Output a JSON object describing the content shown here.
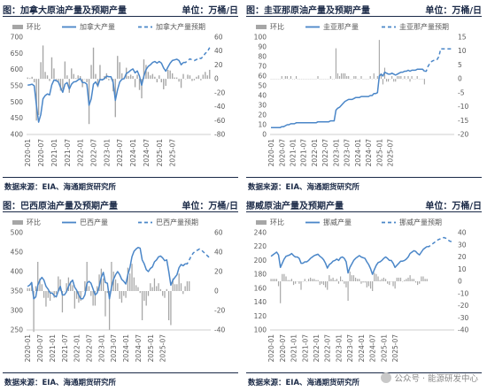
{
  "panels": [
    {
      "title": "图：加拿大原油产量及预期产量",
      "unit": "单位：万桶/日",
      "source": "数据来源：EIA、海通期货研究所"
    },
    {
      "title": "图：圭亚那原油产量及预期产量",
      "unit": "单位：万桶/日",
      "source": "数据来源：EIA、海通期货研究所"
    },
    {
      "title": "图：巴西原油产量及预期产量",
      "unit": "单位：万桶/日",
      "source": "数据来源：EIA、海通期货研究所"
    },
    {
      "title": "挪威原油产量及预期产量",
      "unit": "单位：万桶/日",
      "source": "数据来源：EIA、海通期货研究所"
    }
  ],
  "watermark": "公众号 · 能源研发中心",
  "colors": {
    "bar": "#a6a6a6",
    "line": "#4a86c8",
    "text": "#1b2a47",
    "axis": "#595959"
  },
  "chart_data": [
    {
      "type": "line",
      "legend": [
        "环比",
        "加拿大产量",
        "加拿大产量预期"
      ],
      "x_ticks": [
        "2020-01",
        "2020-07",
        "2021-01",
        "2021-07",
        "2022-01",
        "2022-07",
        "2023-01",
        "2023-07",
        "2024-01",
        "2024-07",
        "2025-01",
        "2025-07"
      ],
      "y_left": {
        "min": 400,
        "max": 700,
        "ticks": [
          400,
          450,
          500,
          550,
          600,
          650,
          700
        ]
      },
      "y_right": {
        "min": -80,
        "max": 60,
        "ticks": [
          -80,
          -60,
          -40,
          -20,
          0,
          20,
          40,
          60
        ]
      },
      "start": "2020-01",
      "actual": [
        552,
        553,
        555,
        550,
        490,
        438,
        462,
        510,
        520,
        525,
        522,
        553,
        568,
        566,
        562,
        545,
        530,
        555,
        560,
        540,
        555,
        562,
        563,
        568,
        572,
        560,
        560,
        555,
        490,
        510,
        555,
        562,
        550,
        570,
        568,
        572,
        580,
        578,
        578,
        560,
        505,
        538,
        562,
        570,
        572,
        588,
        592,
        598,
        602,
        590,
        596,
        580,
        552,
        580,
        600,
        610,
        615,
        622,
        625,
        620,
        625,
        620,
        605,
        595,
        608,
        620,
        628,
        630,
        632,
        628,
        615,
        622
      ],
      "forecast": [
        622,
        628,
        633,
        630,
        628,
        631,
        636,
        634,
        640,
        650,
        655,
        668
      ],
      "mom": [
        2,
        1,
        3,
        -5,
        -60,
        -52,
        24,
        48,
        10,
        5,
        -3,
        31,
        15,
        -2,
        -4,
        -17,
        -15,
        25,
        5,
        -20,
        15,
        7,
        1,
        5,
        4,
        -12,
        0,
        -5,
        -65,
        20,
        45,
        7,
        -12,
        20,
        -2,
        4,
        8,
        -2,
        0,
        -18,
        -55,
        33,
        24,
        8,
        2,
        16,
        4,
        6,
        4,
        -12,
        6,
        -16,
        -28,
        28,
        20,
        10,
        5,
        7,
        3,
        -5,
        5,
        -5,
        -15,
        -10,
        13,
        12,
        8,
        2,
        2,
        -4,
        -13,
        7,
        0,
        6,
        5,
        -3,
        -2,
        3,
        5,
        -2,
        6,
        10,
        5,
        13
      ]
    },
    {
      "type": "line",
      "legend": [
        "环比",
        "圭亚那产量",
        "圭亚那产量预期"
      ],
      "x_ticks": [
        "2020-01",
        "2020-07",
        "2021-01",
        "2021-07",
        "2022-01",
        "2022-07",
        "2023-01",
        "2023-07",
        "2024-01",
        "2024-07",
        "2025-01",
        "2025-07"
      ],
      "y_left": {
        "min": 0,
        "max": 100,
        "ticks": [
          0,
          10,
          20,
          30,
          40,
          50,
          60,
          70,
          80,
          90,
          100
        ]
      },
      "y_right": {
        "min": -20,
        "max": 15,
        "ticks": [
          -20,
          -15,
          -10,
          -5,
          0,
          5,
          10,
          15
        ]
      },
      "start": "2020-01",
      "actual": [
        7,
        7,
        7,
        7,
        7,
        7,
        8,
        8,
        9,
        10,
        10,
        11,
        11,
        11,
        12,
        12,
        12,
        12,
        12,
        12,
        12,
        12,
        12,
        12,
        12,
        12,
        13,
        13,
        13,
        13,
        13,
        13,
        13,
        14,
        14,
        14,
        25,
        27,
        28,
        30,
        32,
        34,
        35,
        36,
        36,
        36,
        37,
        38,
        38,
        38,
        39,
        39,
        39,
        39,
        39,
        40,
        40,
        42,
        42,
        43,
        60,
        62,
        60,
        64,
        63,
        62,
        62,
        63,
        62,
        61,
        62,
        63,
        64,
        64,
        65,
        65,
        66,
        65,
        66,
        66,
        66,
        67,
        67,
        67,
        67,
        65
      ],
      "forecast": [
        65,
        70,
        73,
        75,
        76,
        76,
        77,
        80,
        88,
        88,
        88,
        88,
        88,
        88,
        88,
        88
      ],
      "mom": [
        0,
        0,
        0,
        0,
        0,
        0,
        1,
        0,
        1,
        1,
        0,
        1,
        0,
        0,
        1,
        0,
        0,
        0,
        0,
        0,
        0,
        0,
        0,
        0,
        0,
        0,
        1,
        0,
        0,
        0,
        0,
        0,
        0,
        1,
        0,
        0,
        11,
        2,
        1,
        2,
        2,
        2,
        1,
        1,
        0,
        0,
        1,
        1,
        0,
        0,
        1,
        0,
        0,
        0,
        0,
        1,
        0,
        2,
        0,
        1,
        14,
        2,
        -2,
        4,
        -1,
        -1,
        0,
        1,
        -1,
        -1,
        1,
        1,
        1,
        0,
        1,
        0,
        1,
        -1,
        1,
        0,
        0,
        1,
        0,
        0,
        0,
        -2
      ]
    },
    {
      "type": "line",
      "legend": [
        "环比",
        "巴西产量",
        "巴西产量预期"
      ],
      "x_ticks": [
        "2020-01",
        "2020-07",
        "2021-01",
        "2021-07",
        "2022-01",
        "2022-07",
        "2023-01",
        "2023-07",
        "2024-01",
        "2024-07",
        "2025-01",
        "2025-07"
      ],
      "y_left": {
        "min": 250,
        "max": 500,
        "ticks": [
          250,
          300,
          350,
          400,
          450,
          500
        ]
      },
      "y_right": {
        "min": -40,
        "max": 60,
        "ticks": [
          -40,
          -20,
          0,
          20,
          40,
          60
        ]
      },
      "start": "2020-01",
      "actual": [
        362,
        365,
        372,
        330,
        335,
        365,
        378,
        385,
        378,
        362,
        355,
        345,
        345,
        338,
        335,
        350,
        362,
        340,
        340,
        348,
        362,
        372,
        378,
        360,
        352,
        340,
        330,
        330,
        340,
        370,
        375,
        370,
        355,
        340,
        345,
        362,
        385,
        398,
        372,
        370,
        330,
        360,
        380,
        392,
        400,
        392,
        380,
        375,
        368,
        392,
        410,
        438,
        452,
        458,
        462,
        460,
        430,
        420,
        405,
        400,
        408,
        412,
        425,
        430,
        438,
        440,
        435,
        428,
        430,
        400,
        365,
        378,
        385,
        392,
        410,
        418,
        415,
        420
      ],
      "forecast": [
        420,
        430,
        440,
        448,
        452,
        455,
        458,
        455,
        450,
        445,
        440,
        435
      ],
      "mom": [
        3,
        3,
        7,
        -42,
        5,
        30,
        13,
        7,
        -7,
        -16,
        -7,
        -10,
        0,
        -7,
        -3,
        15,
        12,
        -22,
        0,
        8,
        14,
        10,
        6,
        -18,
        -8,
        -12,
        -10,
        0,
        10,
        30,
        5,
        -5,
        -15,
        -15,
        5,
        17,
        23,
        13,
        -26,
        -2,
        -40,
        30,
        20,
        12,
        8,
        -8,
        -12,
        -5,
        -7,
        24,
        18,
        28,
        14,
        6,
        4,
        -2,
        -30,
        -10,
        -15,
        -5,
        8,
        4,
        13,
        5,
        8,
        2,
        -5,
        -7,
        2,
        -30,
        -35,
        13,
        7,
        7,
        18,
        8,
        -3,
        5,
        10,
        10
      ]
    },
    {
      "type": "line",
      "legend": [
        "环比",
        "挪威产量",
        "挪威产量预期"
      ],
      "x_ticks": [
        "2020-01",
        "2020-07",
        "2021-01",
        "2021-07",
        "2022-01",
        "2022-07",
        "2023-01",
        "2023-07",
        "2024-01",
        "2024-07",
        "2025-01",
        "2025-07"
      ],
      "y_left": {
        "min": 100,
        "max": 240,
        "ticks": [
          100,
          120,
          140,
          160,
          180,
          200,
          220,
          240
        ]
      },
      "y_right": {
        "min": -40,
        "max": 40,
        "ticks": [
          -40,
          -30,
          -20,
          -10,
          0,
          10,
          20,
          30,
          40
        ]
      },
      "start": "2020-01",
      "actual": [
        206,
        208,
        210,
        212,
        208,
        190,
        196,
        202,
        206,
        207,
        208,
        210,
        207,
        205,
        205,
        203,
        196,
        196,
        198,
        198,
        200,
        203,
        205,
        207,
        208,
        209,
        206,
        204,
        201,
        196,
        189,
        194,
        196,
        199,
        200,
        202,
        200,
        204,
        205,
        203,
        198,
        182,
        190,
        195,
        200,
        203,
        205,
        207,
        205,
        204,
        203,
        198,
        194,
        188,
        180,
        187,
        193,
        197,
        198,
        200,
        203,
        205,
        203,
        200,
        200,
        196,
        190,
        193,
        196,
        199,
        199,
        200,
        202,
        205,
        210,
        212,
        214,
        213,
        210,
        208,
        212,
        216,
        218,
        220
      ],
      "forecast": [
        220,
        222,
        224,
        226,
        228,
        230,
        231,
        232,
        233,
        232,
        230,
        228,
        227,
        226
      ],
      "mom": [
        2,
        2,
        2,
        2,
        -4,
        -18,
        6,
        6,
        4,
        1,
        1,
        2,
        -3,
        -2,
        0,
        -2,
        -7,
        0,
        2,
        0,
        2,
        3,
        2,
        2,
        1,
        1,
        -3,
        -2,
        -3,
        -5,
        -7,
        5,
        2,
        3,
        1,
        2,
        -2,
        4,
        1,
        -2,
        -5,
        -16,
        8,
        5,
        5,
        3,
        2,
        2,
        -2,
        -1,
        -1,
        -5,
        -4,
        -6,
        -8,
        7,
        6,
        4,
        1,
        2,
        3,
        2,
        -2,
        -3,
        0,
        -4,
        -6,
        3,
        3,
        3,
        0,
        1,
        2,
        3,
        5,
        2,
        2,
        -1,
        -3,
        -2,
        4,
        4,
        2,
        2
      ]
    }
  ]
}
